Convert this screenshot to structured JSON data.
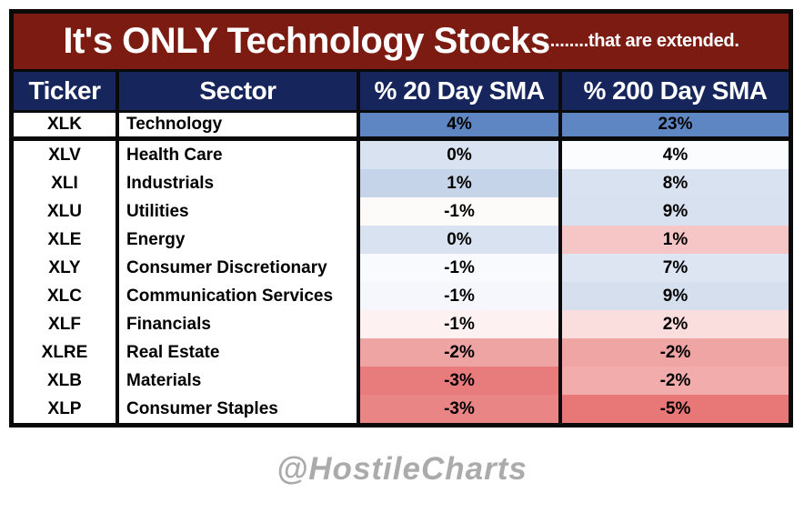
{
  "chart_data": {
    "type": "table",
    "title": {
      "main": "It's ONLY Technology Stocks",
      "suffix": "........that are extended."
    },
    "columns": [
      "Ticker",
      "Sector",
      "% 20 Day SMA",
      "% 200 Day SMA"
    ],
    "rows": [
      {
        "ticker": "XLK",
        "sector": "Technology",
        "sma20": "4%",
        "sma200": "23%",
        "sma20_color": "#5E86C2",
        "sma200_color": "#5E86C2",
        "highlighted": true
      },
      {
        "ticker": "XLV",
        "sector": "Health Care",
        "sma20": "0%",
        "sma200": "4%",
        "sma20_color": "#D8E2F0",
        "sma200_color": "#FBFCFE",
        "highlighted": false
      },
      {
        "ticker": "XLI",
        "sector": "Industrials",
        "sma20": "1%",
        "sma200": "8%",
        "sma20_color": "#C6D4E9",
        "sma200_color": "#D9E2F0",
        "highlighted": false
      },
      {
        "ticker": "XLU",
        "sector": "Utilities",
        "sma20": "-1%",
        "sma200": "9%",
        "sma20_color": "#FDFAFA",
        "sma200_color": "#D7E1EF",
        "highlighted": false
      },
      {
        "ticker": "XLE",
        "sector": "Energy",
        "sma20": "0%",
        "sma200": "1%",
        "sma20_color": "#D8E2F0",
        "sma200_color": "#F6C6C6",
        "highlighted": false
      },
      {
        "ticker": "XLY",
        "sector": "Consumer Discretionary",
        "sma20": "-1%",
        "sma200": "7%",
        "sma20_color": "#F8FAFD",
        "sma200_color": "#DCE5F1",
        "highlighted": false
      },
      {
        "ticker": "XLC",
        "sector": "Communication Services",
        "sma20": "-1%",
        "sma200": "9%",
        "sma20_color": "#F5F7FC",
        "sma200_color": "#D5DFEE",
        "highlighted": false
      },
      {
        "ticker": "XLF",
        "sector": "Financials",
        "sma20": "-1%",
        "sma200": "2%",
        "sma20_color": "#FDF1F1",
        "sma200_color": "#FADEDE",
        "highlighted": false
      },
      {
        "ticker": "XLRE",
        "sector": "Real Estate",
        "sma20": "-2%",
        "sma200": "-2%",
        "sma20_color": "#EFA4A4",
        "sma200_color": "#F0A5A5",
        "highlighted": false
      },
      {
        "ticker": "XLB",
        "sector": "Materials",
        "sma20": "-3%",
        "sma200": "-2%",
        "sma20_color": "#E87C7C",
        "sma200_color": "#F2ACAC",
        "highlighted": false
      },
      {
        "ticker": "XLP",
        "sector": "Consumer Staples",
        "sma20": "-3%",
        "sma200": "-5%",
        "sma20_color": "#EA8585",
        "sma200_color": "#E87878",
        "highlighted": false
      }
    ]
  },
  "watermark": "@HostileCharts",
  "colors": {
    "title_bg": "#7B1B12",
    "header_bg": "#16265C",
    "border_black": "#0A0A0A",
    "highlight_blue": "#5E86C2",
    "watermark_gray": "#ABABAB",
    "text_white": "#FFFFFF",
    "text_black": "#000000"
  }
}
